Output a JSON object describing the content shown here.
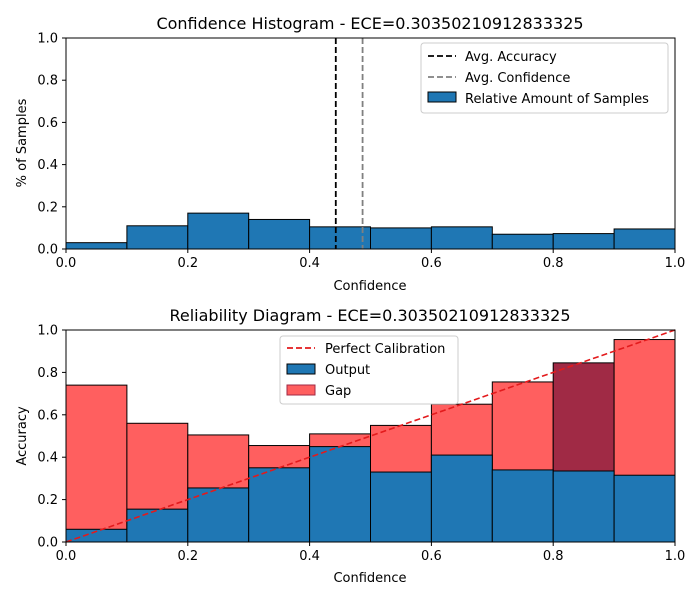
{
  "chart_data": [
    {
      "type": "bar",
      "title": "Confidence Histogram -  ECE=0.30350210912833325",
      "xlabel": "Confidence",
      "ylabel": "% of Samples",
      "xlim": [
        0,
        1
      ],
      "ylim": [
        0,
        1
      ],
      "xticks": [
        "0.0",
        "0.2",
        "0.4",
        "0.6",
        "0.8",
        "1.0"
      ],
      "yticks": [
        "0.0",
        "0.2",
        "0.4",
        "0.6",
        "0.8",
        "1.0"
      ],
      "bin_edges": [
        0.0,
        0.1,
        0.2,
        0.3,
        0.4,
        0.5,
        0.6,
        0.7,
        0.8,
        0.9,
        1.0
      ],
      "series": [
        {
          "name": "Relative Amount of Samples",
          "values": [
            0.03,
            0.11,
            0.17,
            0.14,
            0.105,
            0.1,
            0.105,
            0.07,
            0.073,
            0.095
          ],
          "color": "#1f77b4"
        }
      ],
      "lines": [
        {
          "name": "Avg. Accuracy",
          "x": 0.443,
          "color": "#000000",
          "style": "dashed"
        },
        {
          "name": "Avg. Confidence",
          "x": 0.487,
          "color": "#808080",
          "style": "dashed"
        }
      ],
      "legend": {
        "position": "top-right",
        "entries": [
          "Avg. Accuracy",
          "Avg. Confidence",
          "Relative Amount of Samples"
        ]
      }
    },
    {
      "type": "bar",
      "title": "Reliability Diagram -  ECE=0.30350210912833325",
      "xlabel": "Confidence",
      "ylabel": "Accuracy",
      "xlim": [
        0,
        1
      ],
      "ylim": [
        0,
        1
      ],
      "xticks": [
        "0.0",
        "0.2",
        "0.4",
        "0.6",
        "0.8",
        "1.0"
      ],
      "yticks": [
        "0.0",
        "0.2",
        "0.4",
        "0.6",
        "0.8",
        "1.0"
      ],
      "bin_edges": [
        0.0,
        0.1,
        0.2,
        0.3,
        0.4,
        0.5,
        0.6,
        0.7,
        0.8,
        0.9,
        1.0
      ],
      "series": [
        {
          "name": "Output",
          "values": [
            0.06,
            0.155,
            0.255,
            0.35,
            0.45,
            0.33,
            0.41,
            0.34,
            0.335,
            0.315
          ],
          "color": "#1f77b4"
        },
        {
          "name": "Gap",
          "bin_confidence": [
            0.74,
            0.56,
            0.505,
            0.455,
            0.51,
            0.55,
            0.65,
            0.755,
            0.845,
            0.955
          ],
          "color_overconfident": "#ff5f5f",
          "color_underconfident": "#a02a45"
        }
      ],
      "diagonal": {
        "name": "Perfect Calibration",
        "from": [
          0,
          0
        ],
        "to": [
          1,
          1
        ],
        "color": "#e31a1c",
        "style": "dashed"
      },
      "legend": {
        "position": "top-center",
        "entries": [
          "Perfect Calibration",
          "Output",
          "Gap"
        ]
      }
    }
  ]
}
